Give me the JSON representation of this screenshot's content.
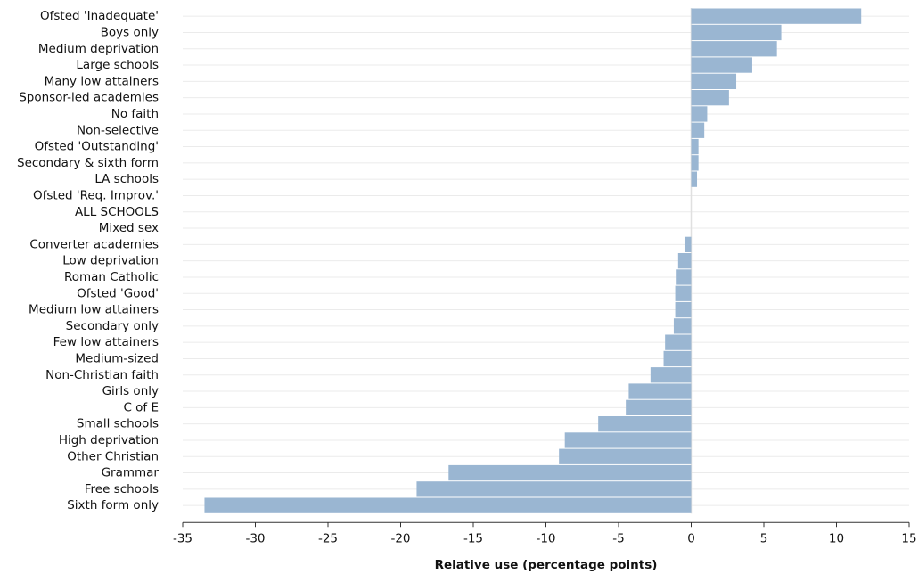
{
  "chart_data": {
    "type": "bar",
    "orientation": "horizontal",
    "xlabel": "Relative use (percentage points)",
    "xlim": [
      -35,
      15
    ],
    "xticks": [
      "-35",
      "-30",
      "-25",
      "-20",
      "-15",
      "-10",
      "-5",
      "0",
      "5",
      "10",
      "15"
    ],
    "grid": true,
    "bar_color": "#9ab6d2",
    "categories": [
      "Ofsted 'Inadequate'",
      "Boys only",
      "Medium deprivation",
      "Large schools",
      "Many low attainers",
      "Sponsor-led academies",
      "No faith",
      "Non-selective",
      "Ofsted 'Outstanding'",
      "Secondary & sixth form",
      "LA schools",
      "Ofsted 'Req. Improv.'",
      "ALL SCHOOLS",
      "Mixed sex",
      "Converter academies",
      "Low deprivation",
      "Roman Catholic",
      "Ofsted 'Good'",
      "Medium low attainers",
      "Secondary only",
      "Few low attainers",
      "Medium-sized",
      "Non-Christian faith",
      "Girls only",
      "C of E",
      "Small schools",
      "High deprivation",
      "Other Christian",
      "Grammar",
      "Free schools",
      "Sixth form only"
    ],
    "values": [
      11.7,
      6.2,
      5.9,
      4.2,
      3.1,
      2.6,
      1.1,
      0.9,
      0.5,
      0.5,
      0.4,
      0.0,
      0.0,
      0.0,
      -0.4,
      -0.9,
      -1.0,
      -1.1,
      -1.1,
      -1.2,
      -1.8,
      -1.9,
      -2.8,
      -4.3,
      -4.5,
      -6.4,
      -8.7,
      -9.1,
      -16.7,
      -18.9,
      -33.5
    ]
  }
}
